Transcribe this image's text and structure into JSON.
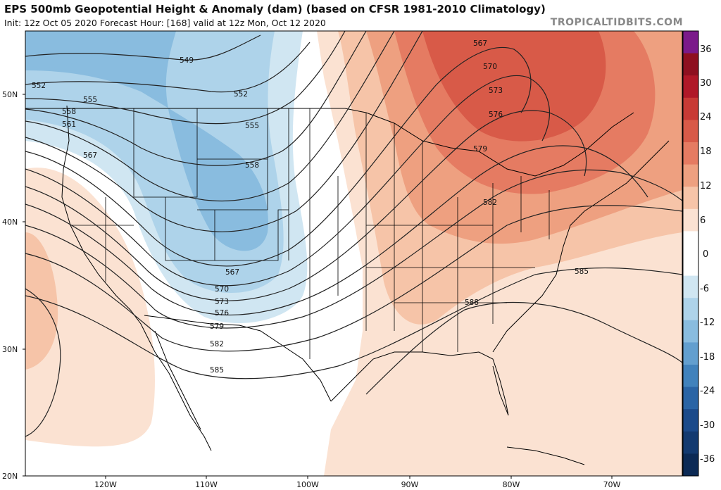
{
  "header": {
    "title": "EPS 500mb Geopotential Height & Anomaly (dam) (based on CFSR 1981-2010 Climatology)",
    "subtitle": "Init: 12z Oct 05 2020   Forecast Hour: [168]   valid at 12z Mon, Oct 12 2020",
    "brand": "TROPICALTIDBITS.COM"
  },
  "axes": {
    "lat_labels": [
      "50N",
      "40N",
      "30N",
      "20N"
    ],
    "lon_labels": [
      "120W",
      "110W",
      "100W",
      "90W",
      "80W",
      "70W"
    ]
  },
  "colorbar": {
    "labels": [
      "36",
      "30",
      "24",
      "18",
      "12",
      "6",
      "0",
      "-6",
      "-12",
      "-18",
      "-24",
      "-30",
      "-36"
    ],
    "colors": [
      "#7b1a8a",
      "#8e1020",
      "#b01828",
      "#c83a35",
      "#d85a48",
      "#e57b62",
      "#eea080",
      "#f6c4a8",
      "#fbe2d2",
      "#ffffff",
      "#ffffff",
      "#d0e6f2",
      "#aed3ea",
      "#89bcdf",
      "#639fcf",
      "#4182bc",
      "#2a64a5",
      "#1b4a8a",
      "#133a70",
      "#0c2a55"
    ]
  },
  "contours": {
    "line_color": "#222222",
    "labels": [
      {
        "text": "549"
      },
      {
        "text": "552"
      },
      {
        "text": "552"
      },
      {
        "text": "555"
      },
      {
        "text": "555"
      },
      {
        "text": "558"
      },
      {
        "text": "558"
      },
      {
        "text": "561"
      },
      {
        "text": "567"
      },
      {
        "text": "567"
      },
      {
        "text": "570"
      },
      {
        "text": "573"
      },
      {
        "text": "576"
      },
      {
        "text": "579"
      },
      {
        "text": "582"
      },
      {
        "text": "585"
      },
      {
        "text": "567"
      },
      {
        "text": "570"
      },
      {
        "text": "573"
      },
      {
        "text": "576"
      },
      {
        "text": "579"
      },
      {
        "text": "582"
      },
      {
        "text": "585"
      },
      {
        "text": "588"
      }
    ]
  },
  "anomaly": {
    "positive_colors": [
      "#fbe2d2",
      "#f6c4a8",
      "#eea080",
      "#e57b62",
      "#d85a48"
    ],
    "negative_colors": [
      "#d0e6f2",
      "#aed3ea",
      "#89bcdf",
      "#639fcf"
    ]
  }
}
